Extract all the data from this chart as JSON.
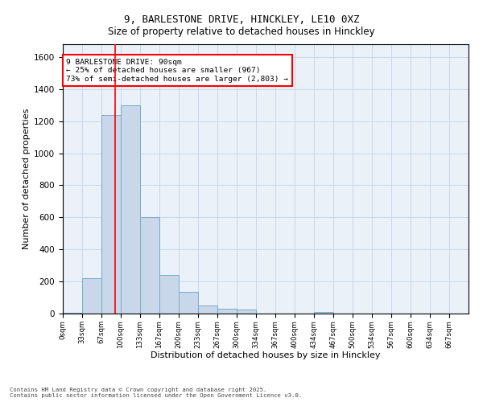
{
  "title_line1": "9, BARLESTONE DRIVE, HINCKLEY, LE10 0XZ",
  "title_line2": "Size of property relative to detached houses in Hinckley",
  "xlabel": "Distribution of detached houses by size in Hinckley",
  "ylabel": "Number of detached properties",
  "bar_values": [
    5,
    220,
    1240,
    1300,
    600,
    240,
    135,
    50,
    28,
    25,
    0,
    0,
    0,
    10,
    0,
    0,
    0,
    0,
    0,
    0,
    0
  ],
  "bar_labels": [
    "0sqm",
    "33sqm",
    "67sqm",
    "100sqm",
    "133sqm",
    "167sqm",
    "200sqm",
    "233sqm",
    "267sqm",
    "300sqm",
    "334sqm",
    "367sqm",
    "400sqm",
    "434sqm",
    "467sqm",
    "500sqm",
    "534sqm",
    "567sqm",
    "600sqm",
    "634sqm",
    "667sqm"
  ],
  "bar_color": "#c8d8ea",
  "bar_edge_color": "#7aaac8",
  "grid_color": "#c8d8e8",
  "bg_color": "#eaf1f8",
  "red_line_x": 2.72,
  "annotation_box_text": "9 BARLESTONE DRIVE: 90sqm\n← 25% of detached houses are smaller (967)\n73% of semi-detached houses are larger (2,803) →",
  "ylim": [
    0,
    1680
  ],
  "yticks": [
    0,
    200,
    400,
    600,
    800,
    1000,
    1200,
    1400,
    1600
  ],
  "footer_line1": "Contains HM Land Registry data © Crown copyright and database right 2025.",
  "footer_line2": "Contains public sector information licensed under the Open Government Licence v3.0."
}
